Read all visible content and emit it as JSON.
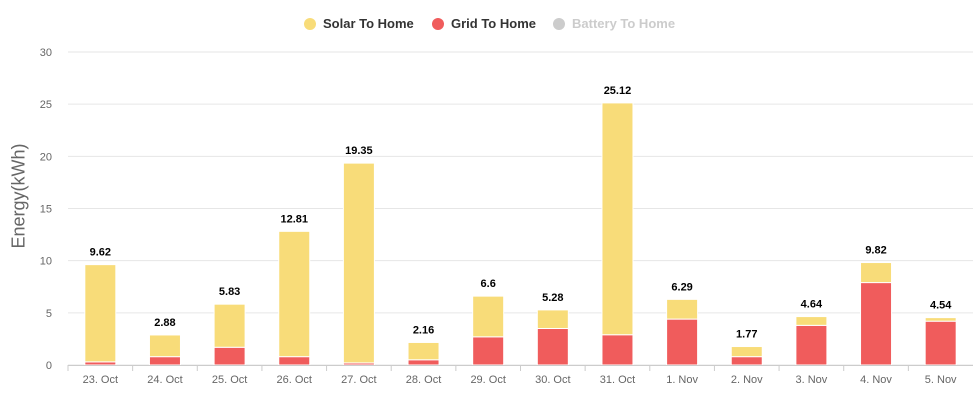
{
  "legend": {
    "solar_label": "Solar To Home",
    "grid_label": "Grid To Home",
    "battery_label": "Battery To Home"
  },
  "colors": {
    "solar": "#f8dc79",
    "grid": "#f05c5c",
    "battery": "#cccccc",
    "gridline": "#e6e6e6",
    "axis_text": "#666666",
    "total_label": "#000000"
  },
  "chart_data": {
    "type": "bar",
    "stacked": true,
    "categories": [
      "23. Oct",
      "24. Oct",
      "25. Oct",
      "26. Oct",
      "27. Oct",
      "28. Oct",
      "29. Oct",
      "30. Oct",
      "31. Oct",
      "1. Nov",
      "2. Nov",
      "3. Nov",
      "4. Nov",
      "5. Nov"
    ],
    "series": [
      {
        "name": "Grid To Home",
        "values": [
          0.3,
          0.8,
          1.7,
          0.8,
          0.2,
          0.5,
          2.7,
          3.5,
          2.9,
          4.4,
          0.8,
          3.8,
          7.9,
          4.2
        ]
      },
      {
        "name": "Solar To Home",
        "values": [
          9.32,
          2.08,
          4.13,
          12.01,
          19.15,
          1.66,
          3.9,
          1.78,
          22.22,
          1.89,
          0.97,
          0.84,
          1.92,
          0.34
        ]
      },
      {
        "name": "Battery To Home",
        "values": [
          0,
          0,
          0,
          0,
          0,
          0,
          0,
          0,
          0,
          0,
          0,
          0,
          0,
          0
        ],
        "hidden": true
      }
    ],
    "totals": [
      "9.62",
      "2.88",
      "5.83",
      "12.81",
      "19.35",
      "2.16",
      "6.6",
      "5.28",
      "25.12",
      "6.29",
      "1.77",
      "4.64",
      "9.82",
      "4.54"
    ],
    "ylabel": "Energy(kWh)",
    "ylim": [
      0,
      30
    ],
    "yticks": [
      "0",
      "5",
      "10",
      "15",
      "20",
      "25",
      "30"
    ],
    "grid": true,
    "legend_position": "top-center"
  }
}
